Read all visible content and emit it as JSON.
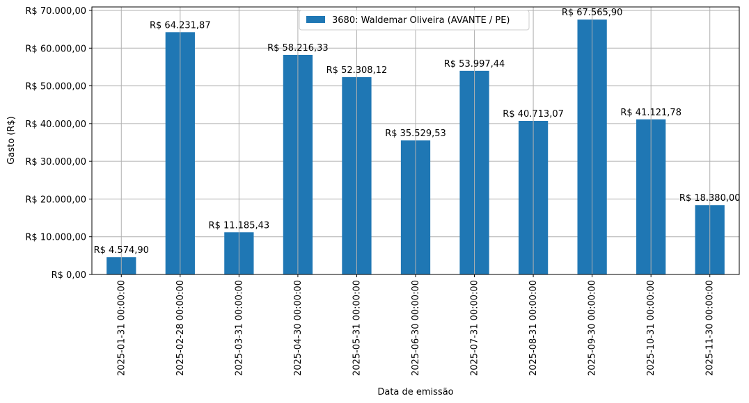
{
  "chart_data": {
    "type": "bar",
    "title": "",
    "xlabel": "Data de emissão",
    "ylabel": "Gasto (R$)",
    "ylim": [
      0,
      70000
    ],
    "grid": true,
    "legend_position": "upper center",
    "bar_color": "#1f77b4",
    "categories": [
      "2025-01-31 00:00:00",
      "2025-02-28 00:00:00",
      "2025-03-31 00:00:00",
      "2025-04-30 00:00:00",
      "2025-05-31 00:00:00",
      "2025-06-30 00:00:00",
      "2025-07-31 00:00:00",
      "2025-08-31 00:00:00",
      "2025-09-30 00:00:00",
      "2025-10-31 00:00:00",
      "2025-11-30 00:00:00"
    ],
    "series": [
      {
        "name": "3680: Waldemar Oliveira (AVANTE / PE)",
        "values": [
          4574.9,
          64231.87,
          11185.43,
          58216.33,
          52308.12,
          35529.53,
          53997.44,
          40713.07,
          67565.9,
          41121.78,
          18380.0
        ],
        "labels": [
          "R$ 4.574,90",
          "R$ 64.231,87",
          "R$ 11.185,43",
          "R$ 58.216,33",
          "R$ 52.308,12",
          "R$ 35.529,53",
          "R$ 53.997,44",
          "R$ 40.713,07",
          "R$ 67.565,90",
          "R$ 41.121,78",
          "R$ 18.380,00"
        ]
      }
    ],
    "yticks": [
      0,
      10000,
      20000,
      30000,
      40000,
      50000,
      60000,
      70000
    ],
    "ytick_labels": [
      "R$ 0,00",
      "R$ 10.000,00",
      "R$ 20.000,00",
      "R$ 30.000,00",
      "R$ 40.000,00",
      "R$ 50.000,00",
      "R$ 60.000,00",
      "R$ 70.000,00"
    ]
  }
}
